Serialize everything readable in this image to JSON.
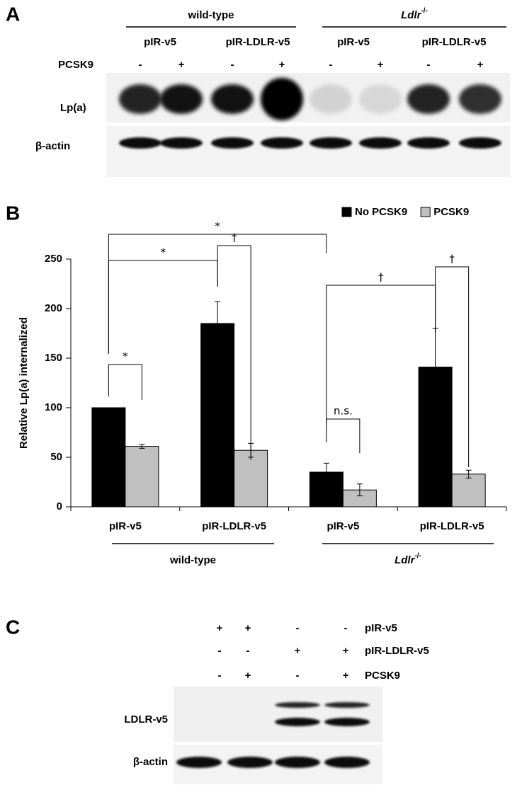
{
  "panel_a": {
    "label": "A",
    "groups": [
      {
        "name": "wild-type"
      },
      {
        "name": "Ldlr",
        "superscript": "-/-"
      }
    ],
    "constructs": [
      "pIR-v5",
      "pIR-LDLR-v5",
      "pIR-v5",
      "pIR-LDLR-v5"
    ],
    "treatment_label": "PCSK9",
    "treatment_signs": [
      "-",
      "+",
      "-",
      "+",
      "-",
      "+",
      "-",
      "+"
    ],
    "blots": [
      "Lp(a)",
      "β-actin"
    ]
  },
  "chart_data": {
    "type": "bar",
    "panel_label": "B",
    "y_label": "Relative Lp(a) internalized",
    "categories": [
      "pIR-v5",
      "pIR-LDLR-v5",
      "pIR-v5",
      "pIR-LDLR-v5"
    ],
    "groups": [
      {
        "label": "wild-type"
      },
      {
        "label": "Ldlr",
        "superscript": "-/-"
      }
    ],
    "series": [
      {
        "name": "No PCSK9",
        "color": "#000000",
        "values": [
          100,
          185,
          35,
          141
        ],
        "errors": [
          0,
          22,
          9,
          39
        ]
      },
      {
        "name": "PCSK9",
        "color": "#c0c0c0",
        "values": [
          61,
          57,
          17,
          33
        ],
        "errors": [
          2,
          7,
          6,
          4
        ]
      }
    ],
    "ylim": [
      0,
      250
    ],
    "yticks": [
      0,
      50,
      100,
      150,
      200,
      250
    ],
    "legend": "top-right",
    "annotations": [
      "*",
      "*",
      "†",
      "*",
      "n.s.",
      "†",
      "†"
    ]
  },
  "panel_c": {
    "label": "C",
    "rows": [
      {
        "label": "pIR-v5",
        "signs": [
          "+",
          "+",
          "-",
          "-"
        ]
      },
      {
        "label": "pIR-LDLR-v5",
        "signs": [
          "-",
          "-",
          "+",
          "+"
        ]
      },
      {
        "label": "PCSK9",
        "signs": [
          "-",
          "+",
          "-",
          "+"
        ]
      }
    ],
    "blots": [
      "LDLR-v5",
      "β-actin"
    ]
  }
}
